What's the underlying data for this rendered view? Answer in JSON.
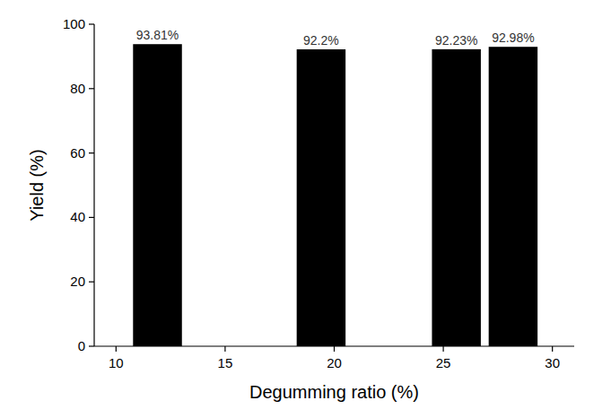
{
  "chart_data": {
    "type": "bar",
    "x": [
      11.9,
      19.4,
      25.6,
      28.2
    ],
    "values": [
      93.81,
      92.2,
      92.23,
      92.98
    ],
    "value_labels": [
      "93.81%",
      "92.2%",
      "92.23%",
      "92.98%"
    ],
    "data_labels": true,
    "color": "#000000",
    "x_label": "Degumming ratio (%)",
    "y_label": "Yield (%)",
    "xlim": [
      9,
      31
    ],
    "xticks": [
      10,
      15,
      20,
      25,
      30
    ],
    "ylim": [
      0,
      100
    ],
    "yticks": [
      0,
      20,
      40,
      60,
      80,
      100
    ]
  }
}
